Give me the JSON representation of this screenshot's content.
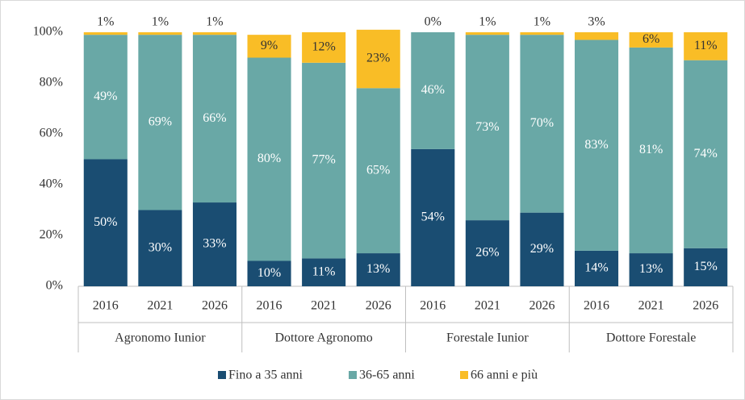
{
  "chart_data": {
    "type": "stacked_bar",
    "categories": [
      "2016",
      "2021",
      "2026",
      "2016",
      "2021",
      "2026",
      "2016",
      "2021",
      "2026",
      "2016",
      "2021",
      "2026"
    ],
    "groups": [
      "Agronomo Iunior",
      "Dottore Agronomo",
      "Forestale Iunior",
      "Dottore Forestale"
    ],
    "series": [
      {
        "name": "Fino a 35 anni",
        "color": "#1a4d72",
        "label_color": "#ffffff",
        "values": [
          50,
          30,
          33,
          10,
          11,
          13,
          54,
          26,
          29,
          14,
          13,
          15
        ],
        "value_labels": [
          "50%",
          "30%",
          "33%",
          "10%",
          "11%",
          "13%",
          "54%",
          "26%",
          "29%",
          "14%",
          "13%",
          "15%"
        ]
      },
      {
        "name": "36-65 anni",
        "color": "#69a8a6",
        "label_color": "#ffffff",
        "values": [
          49,
          69,
          66,
          80,
          77,
          65,
          46,
          73,
          70,
          83,
          81,
          74
        ],
        "value_labels": [
          "49%",
          "69%",
          "66%",
          "80%",
          "77%",
          "65%",
          "46%",
          "73%",
          "70%",
          "83%",
          "81%",
          "74%"
        ]
      },
      {
        "name": "66 anni e più",
        "color": "#f9bd26",
        "label_color": "#333333",
        "values": [
          1,
          1,
          1,
          9,
          12,
          23,
          0,
          1,
          1,
          3,
          6,
          11
        ],
        "value_labels": [
          "1%",
          "1%",
          "1%",
          "9%",
          "12%",
          "23%",
          "0%",
          "1%",
          "1%",
          "3%",
          "6%",
          "11%"
        ]
      }
    ],
    "ylim": [
      0,
      100
    ],
    "yticks": [
      {
        "value": 0,
        "label": "0%"
      },
      {
        "value": 20,
        "label": "20%"
      },
      {
        "value": 40,
        "label": "40%"
      },
      {
        "value": 60,
        "label": "60%"
      },
      {
        "value": 80,
        "label": "80%"
      },
      {
        "value": 100,
        "label": "100%"
      }
    ],
    "legend": "bottom"
  }
}
